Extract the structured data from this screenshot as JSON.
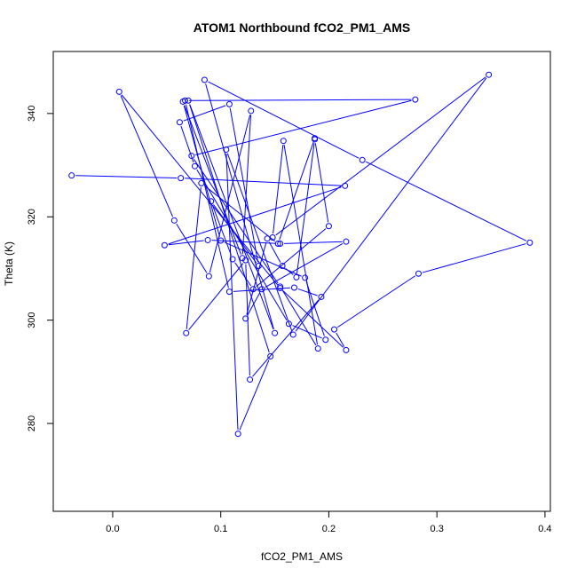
{
  "chart_data": {
    "type": "line",
    "title": "ATOM1 Northbound fCO2_PM1_AMS",
    "xlabel": "fCO2_PM1_AMS",
    "ylabel": "Theta (K)",
    "xlim": [
      -0.055,
      0.405
    ],
    "ylim": [
      263,
      352
    ],
    "x_ticks": [
      0.0,
      0.1,
      0.2,
      0.3,
      0.4
    ],
    "x_tick_labels": [
      "0.0",
      "0.1",
      "0.2",
      "0.3",
      "0.4"
    ],
    "y_ticks": [
      280,
      300,
      320,
      340
    ],
    "y_tick_labels": [
      "280",
      "300",
      "320",
      "340"
    ],
    "grid": false,
    "marker": "open-circle",
    "color": "#0000ff",
    "series": [
      {
        "x": [
          -0.038,
          0.063,
          0.215,
          0.048,
          0.088,
          0.155,
          0.216,
          0.138,
          0.123,
          0.143,
          0.157,
          0.17,
          0.187,
          0.2,
          0.13,
          0.111,
          0.091,
          0.135,
          0.108,
          0.062,
          0.076,
          0.163,
          0.197,
          0.178,
          0.1,
          0.065,
          0.12,
          0.128,
          0.089,
          0.057,
          0.006,
          0.155,
          0.216,
          0.205,
          0.283,
          0.386,
          0.231,
          0.085,
          0.15,
          0.07,
          0.146,
          0.116,
          0.105,
          0.167,
          0.348,
          0.148,
          0.158,
          0.19,
          0.155,
          0.073,
          0.28,
          0.067,
          0.108,
          0.168,
          0.193,
          0.127,
          0.123,
          0.068,
          0.082,
          0.153,
          0.187
        ],
        "y": [
          328,
          327.5,
          326,
          314.5,
          315.5,
          314.8,
          315.2,
          306,
          300.3,
          315.8,
          310.5,
          308.3,
          335,
          318.2,
          306,
          311.8,
          323,
          310.5,
          341.8,
          338.3,
          329.8,
          299.3,
          296.2,
          308.2,
          315.4,
          342.3,
          312,
          340.5,
          308.5,
          319.3,
          344.2,
          306.2,
          294.2,
          298.2,
          309,
          315,
          331,
          346.5,
          297.5,
          342.5,
          293,
          278,
          333,
          297.2,
          347.5,
          316,
          334.7,
          294.5,
          306.5,
          331.8,
          342.7,
          342.5,
          305.5,
          306.3,
          304.5,
          288.5,
          311.6,
          297.5,
          326.5,
          314.8,
          335.2
        ]
      }
    ]
  }
}
